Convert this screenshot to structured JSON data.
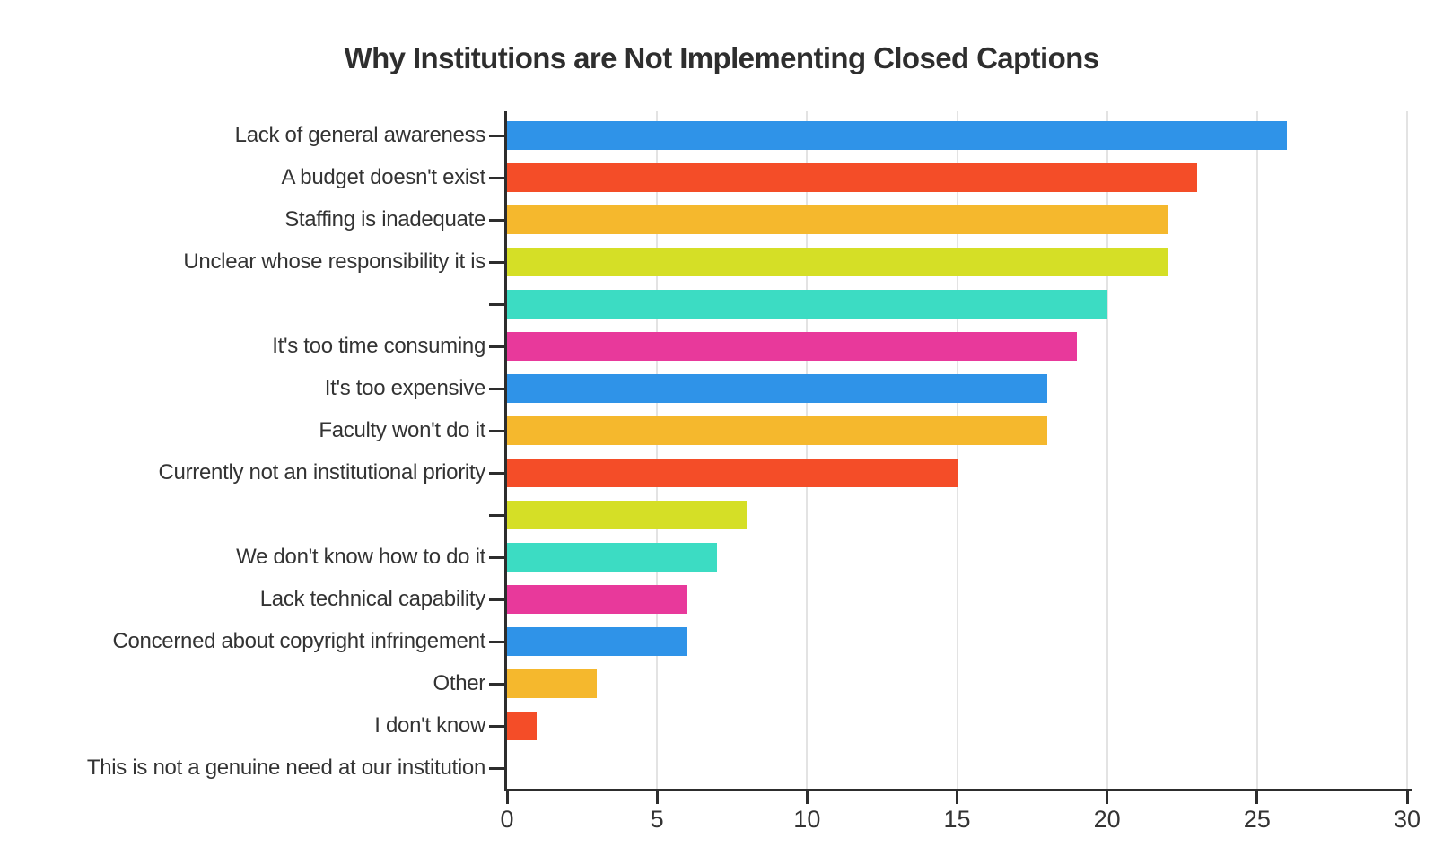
{
  "chart_data": {
    "type": "bar",
    "orientation": "horizontal",
    "title": "Why Institutions are Not Implementing Closed Captions",
    "categories": [
      "Lack of general awareness",
      "A budget doesn't exist",
      "Staffing is inadequate",
      "Unclear whose responsibility it is",
      "",
      "It's too time consuming",
      "It's too expensive",
      "Faculty won't do it",
      "Currently not an institutional priority",
      "",
      "We don't know how to do it",
      "Lack technical capability",
      "Concerned about copyright infringement",
      "Other",
      "I don't know",
      "This is not a genuine need at our institution"
    ],
    "values": [
      26,
      23,
      22,
      22,
      20,
      19,
      18,
      18,
      15,
      8,
      7,
      6,
      6,
      3,
      1,
      0
    ],
    "bar_colors": [
      "#2F93E8",
      "#F44D28",
      "#F5B82D",
      "#D5DF26",
      "#3CDCC3",
      "#E8399B",
      "#2F93E8",
      "#F5B82D",
      "#F44D28",
      "#D5DF26",
      "#3CDCC3",
      "#E8399B",
      "#2F93E8",
      "#F5B82D",
      "#F44D28",
      "#D5DF26"
    ],
    "xlabel": "",
    "ylabel": "",
    "xlim": [
      0,
      30
    ],
    "x_ticks": [
      0,
      5,
      10,
      15,
      20,
      25,
      30
    ],
    "grid": "vertical gridlines at each x tick",
    "legend": "none",
    "colors": {
      "axis": "#2d2d2d",
      "grid": "#e3e3e3",
      "title": "#2e2e2e",
      "label": "#333333",
      "tick_label": "#333333",
      "background": "#ffffff"
    }
  }
}
